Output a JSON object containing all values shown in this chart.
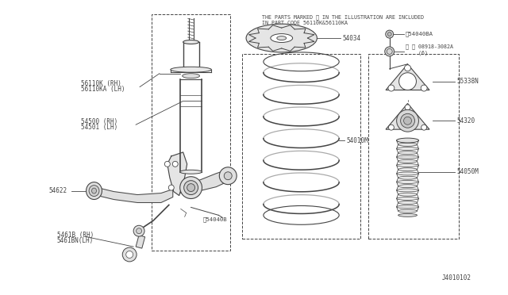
{
  "bg_color": "#ffffff",
  "line_color": "#444444",
  "diagram_id": "J4010102",
  "header_text": "THE PARTS MARKED ※ IN THE ILLUSTRATION ARE INCLUDED\nIN PART CODE 56110K&56110KA",
  "labels": {
    "56110K_RH": "56110K (RH)",
    "56110KA_LH": "56110KA (LH)",
    "54500_RH": "54500 (RH)",
    "54501_LH": "54501 (LH)",
    "54622": "54622",
    "54618_RH": "5461B (RH)",
    "54618N_LH": "5461BN(LH)",
    "54040B": "※54040B",
    "54034": "54034",
    "54010M": "54010M",
    "54040BA": "※54040BA",
    "08918_30B2A": "※ Ⓝ 08918-3082A\n    (6)",
    "55338N": "55338N",
    "54320": "54320",
    "54050M": "54050M"
  }
}
